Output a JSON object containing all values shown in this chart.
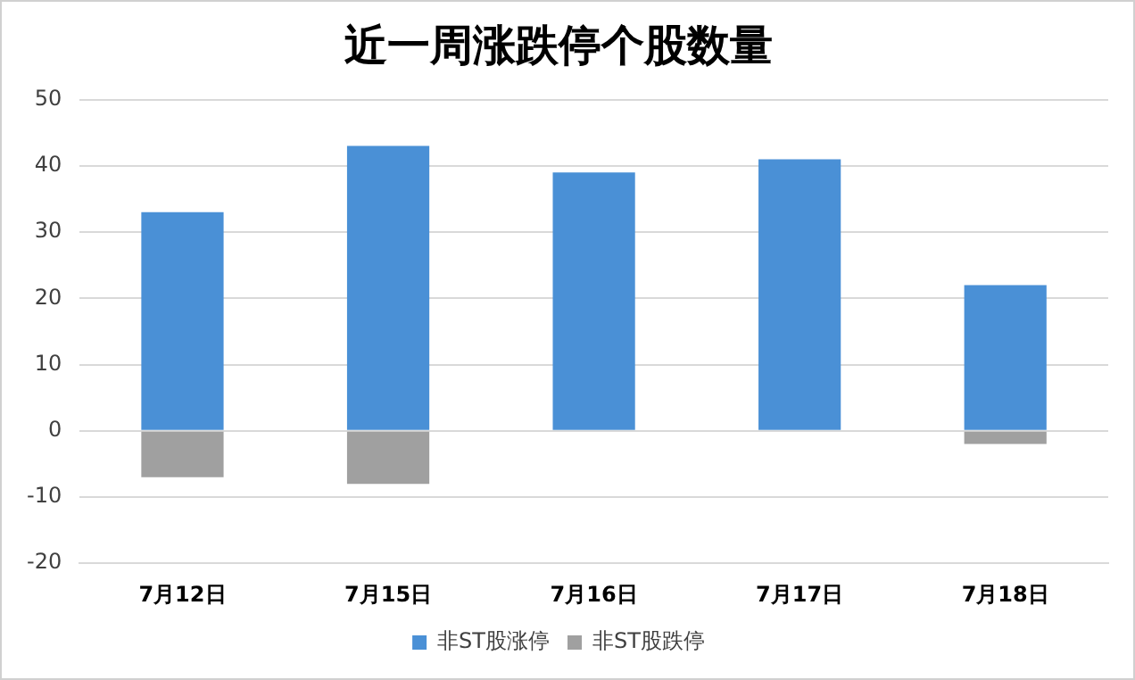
{
  "chart_data": {
    "type": "bar",
    "title": "近一周涨跌停个股数量",
    "categories": [
      "7月12日",
      "7月15日",
      "7月16日",
      "7月17日",
      "7月18日"
    ],
    "series": [
      {
        "name": "非ST股涨停",
        "color": "#4a90d6",
        "values": [
          33,
          43,
          39,
          41,
          22
        ]
      },
      {
        "name": "非ST股跌停",
        "color": "#a0a0a0",
        "values": [
          -7,
          -8,
          0,
          0,
          -2
        ]
      }
    ],
    "stacked": true,
    "ylim": [
      -20,
      50
    ],
    "yticks": [
      -20,
      -10,
      0,
      10,
      20,
      30,
      40,
      50
    ],
    "grid": "y",
    "legend": "bottom"
  }
}
